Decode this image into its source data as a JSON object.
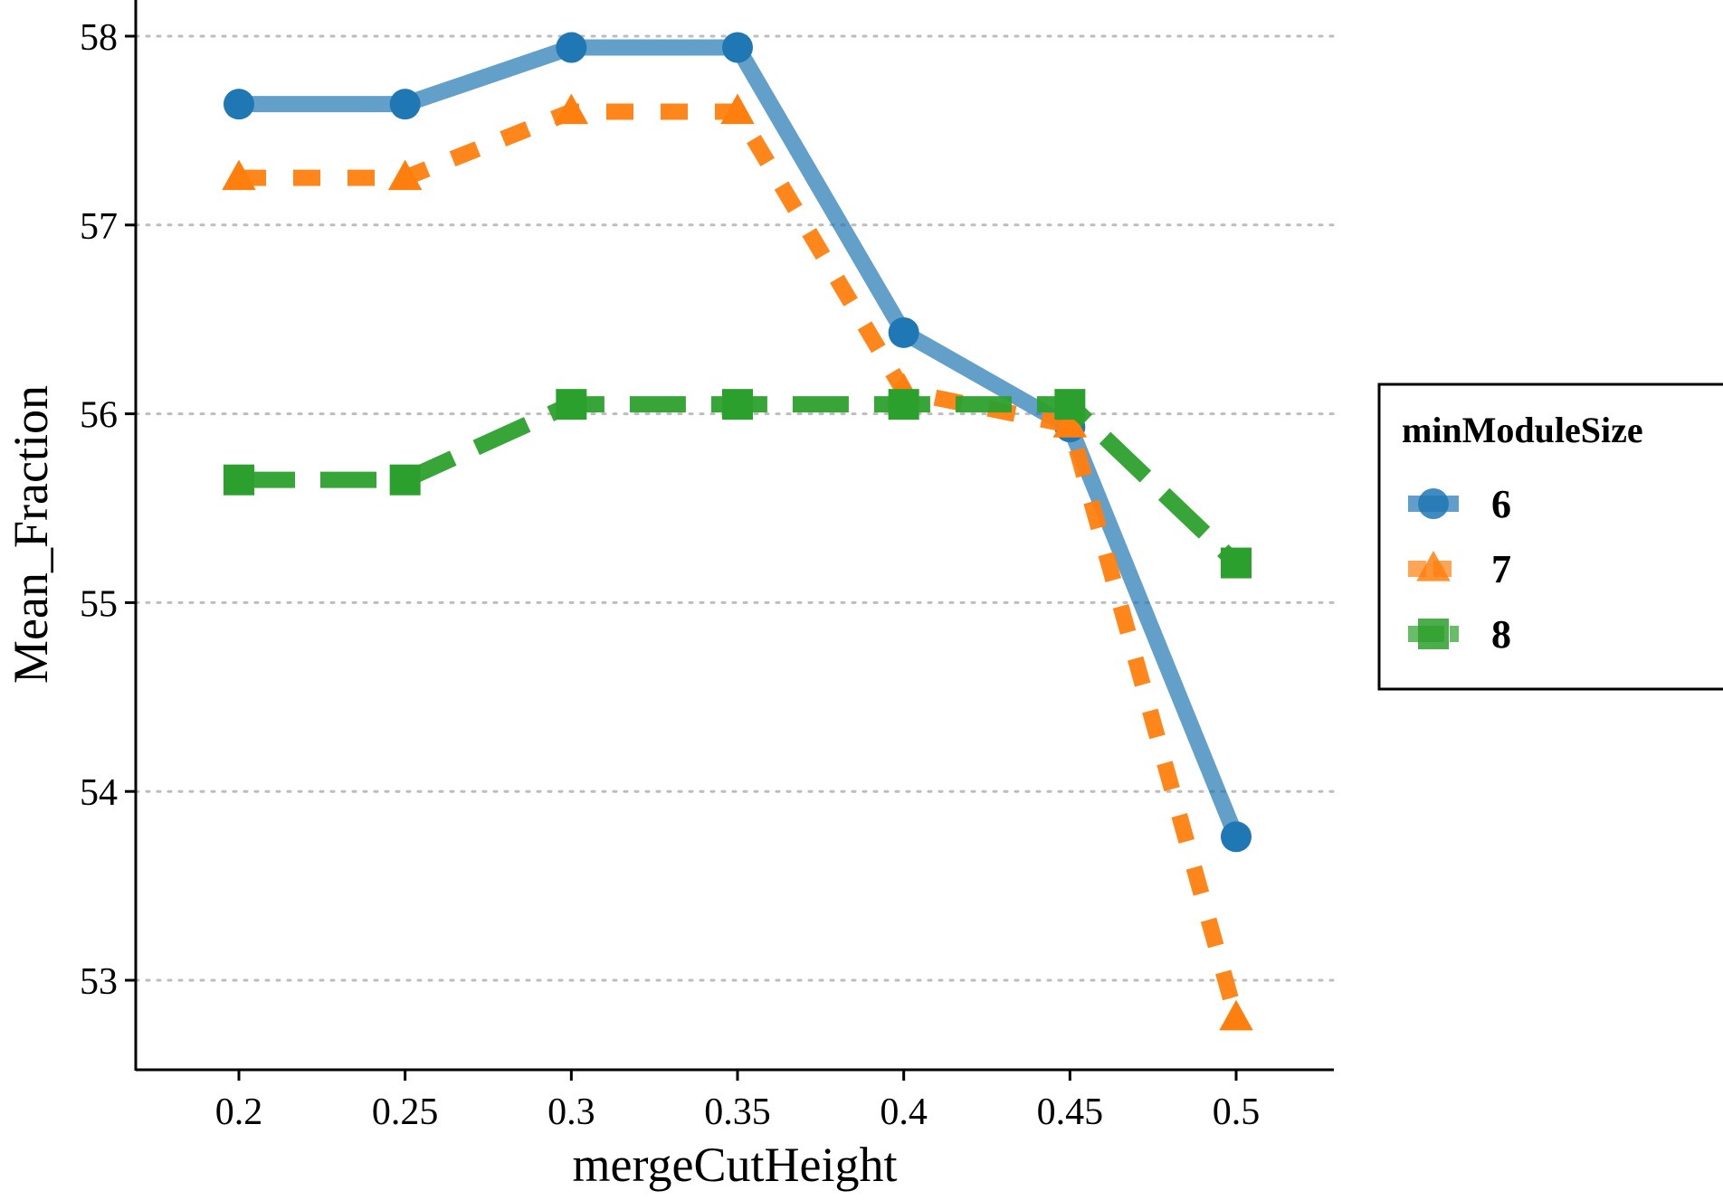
{
  "chart_data": {
    "type": "line",
    "xlabel": "mergeCutHeight",
    "ylabel": "Mean_Fraction",
    "x": [
      0.2,
      0.25,
      0.3,
      0.35,
      0.4,
      0.45,
      0.5
    ],
    "x_tick_labels": [
      "0.2",
      "0.25",
      "0.3",
      "0.35",
      "0.4",
      "0.45",
      "0.5"
    ],
    "y_ticks": [
      53,
      54,
      55,
      56,
      57,
      58
    ],
    "y_tick_labels": [
      "53",
      "54",
      "55",
      "56",
      "57",
      "58"
    ],
    "xlim": [
      0.17,
      0.53
    ],
    "ylim": [
      52.5,
      58.2
    ],
    "grid": "horizontal dotted",
    "legend": {
      "title": "minModuleSize",
      "placement": "right"
    },
    "series": [
      {
        "name": "6",
        "color": "#1f77b4",
        "line": "solid",
        "marker": "circle",
        "values": [
          57.64,
          57.64,
          57.94,
          57.94,
          56.43,
          55.93,
          53.76
        ]
      },
      {
        "name": "7",
        "color": "#ff7f0e",
        "line": "dotted",
        "marker": "triangle",
        "values": [
          57.25,
          57.25,
          57.6,
          57.6,
          56.12,
          55.94,
          52.8
        ]
      },
      {
        "name": "8",
        "color": "#2ca02c",
        "line": "dashed",
        "marker": "square",
        "values": [
          55.65,
          55.65,
          56.05,
          56.05,
          56.05,
          56.05,
          55.21
        ]
      }
    ]
  }
}
